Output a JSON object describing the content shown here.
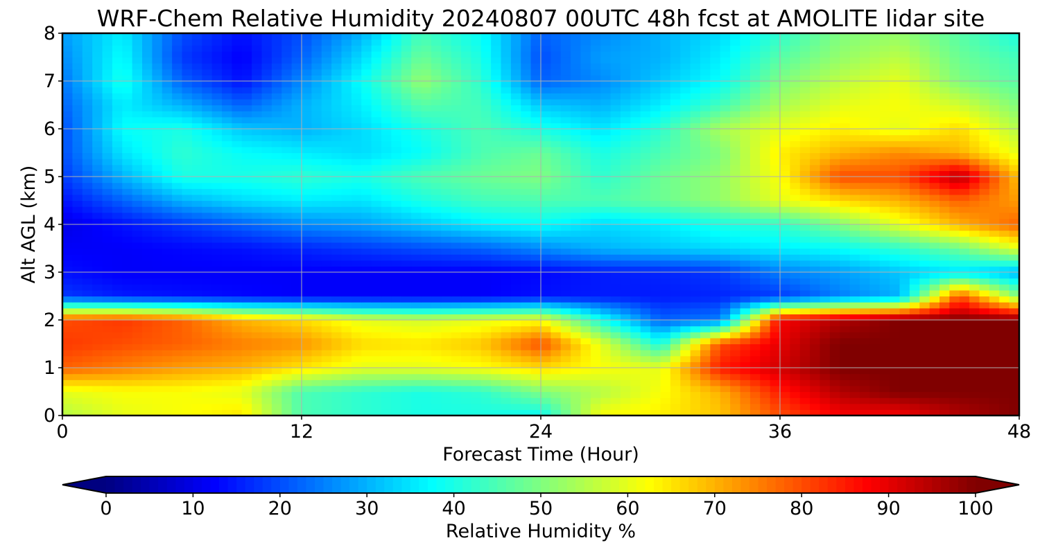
{
  "chart_data": {
    "type": "heatmap",
    "title": "WRF-Chem Relative Humidity 20240807 00UTC 48h fcst at AMOLITE lidar site",
    "xlabel": "Forecast Time (Hour)",
    "ylabel": "Alt AGL (km)",
    "xlim": [
      0,
      48
    ],
    "ylim": [
      0,
      8
    ],
    "x_ticks": [
      0,
      12,
      24,
      36,
      48
    ],
    "y_ticks": [
      0,
      1,
      2,
      3,
      4,
      5,
      6,
      7,
      8
    ],
    "grid": true,
    "colormap": "jet",
    "colorbar": {
      "label": "Relative Humidity %",
      "min": 0,
      "max": 100,
      "ticks": [
        0,
        10,
        20,
        30,
        40,
        50,
        60,
        70,
        80,
        90,
        100
      ],
      "extend": "both",
      "orientation": "horizontal"
    },
    "x": [
      0,
      3,
      6,
      9,
      12,
      15,
      18,
      21,
      24,
      27,
      30,
      33,
      36,
      39,
      42,
      45,
      48
    ],
    "y": [
      0,
      0.5,
      1,
      1.5,
      2,
      2.5,
      3,
      3.5,
      4,
      4.5,
      5,
      5.5,
      6,
      6.5,
      7,
      7.5,
      8
    ],
    "z": [
      [
        55,
        60,
        62,
        65,
        45,
        42,
        40,
        40,
        38,
        62,
        64,
        68,
        80,
        88,
        88,
        95,
        100
      ],
      [
        60,
        62,
        62,
        60,
        45,
        42,
        40,
        42,
        50,
        55,
        62,
        70,
        85,
        95,
        100,
        100,
        100
      ],
      [
        78,
        75,
        72,
        70,
        65,
        60,
        60,
        62,
        66,
        62,
        60,
        85,
        92,
        100,
        100,
        100,
        100
      ],
      [
        82,
        80,
        78,
        75,
        73,
        66,
        65,
        68,
        80,
        60,
        40,
        80,
        90,
        100,
        100,
        100,
        100
      ],
      [
        80,
        82,
        78,
        70,
        66,
        60,
        58,
        60,
        62,
        40,
        22,
        25,
        88,
        95,
        100,
        100,
        100
      ],
      [
        18,
        15,
        14,
        13,
        12,
        12,
        12,
        12,
        14,
        15,
        15,
        16,
        18,
        25,
        30,
        80,
        50
      ],
      [
        14,
        12,
        12,
        12,
        12,
        12,
        12,
        12,
        13,
        15,
        16,
        18,
        25,
        28,
        32,
        35,
        30
      ],
      [
        12,
        12,
        13,
        14,
        16,
        18,
        20,
        22,
        26,
        30,
        32,
        34,
        36,
        38,
        42,
        48,
        60
      ],
      [
        10,
        14,
        18,
        22,
        26,
        28,
        32,
        36,
        38,
        34,
        36,
        40,
        42,
        50,
        60,
        70,
        78
      ],
      [
        14,
        22,
        30,
        34,
        36,
        35,
        40,
        44,
        45,
        45,
        48,
        52,
        60,
        66,
        70,
        78,
        72
      ],
      [
        18,
        30,
        40,
        40,
        42,
        40,
        45,
        48,
        50,
        42,
        48,
        52,
        62,
        80,
        80,
        95,
        68
      ],
      [
        20,
        35,
        42,
        38,
        36,
        34,
        38,
        45,
        48,
        40,
        45,
        50,
        64,
        70,
        74,
        70,
        60
      ],
      [
        20,
        38,
        40,
        32,
        30,
        34,
        40,
        45,
        40,
        35,
        42,
        54,
        60,
        64,
        60,
        66,
        55
      ],
      [
        22,
        36,
        30,
        22,
        30,
        36,
        46,
        44,
        32,
        30,
        36,
        44,
        54,
        60,
        62,
        58,
        50
      ],
      [
        24,
        40,
        22,
        14,
        26,
        38,
        52,
        42,
        22,
        26,
        32,
        38,
        50,
        56,
        60,
        50,
        46
      ],
      [
        26,
        38,
        18,
        12,
        22,
        34,
        48,
        40,
        20,
        28,
        30,
        36,
        46,
        52,
        56,
        48,
        44
      ],
      [
        28,
        36,
        20,
        14,
        20,
        30,
        44,
        38,
        22,
        26,
        30,
        34,
        42,
        50,
        52,
        46,
        40
      ]
    ]
  }
}
